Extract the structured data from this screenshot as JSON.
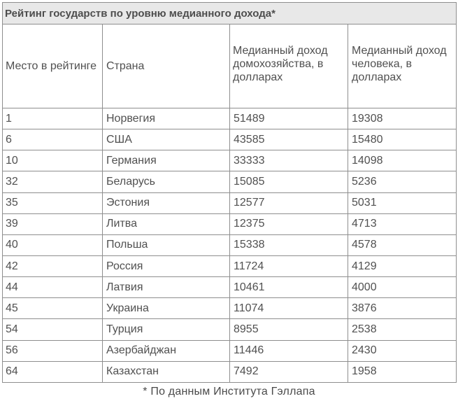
{
  "title": "Рейтинг государств по уровню медианного дохода*",
  "headers": {
    "rank": "Место в рейтинге",
    "country": "Страна",
    "household": "Медианный доход домохозяйства, в долларах",
    "person": "Медианный доход человека, в долларах"
  },
  "rows": [
    {
      "rank": "1",
      "country": "Норвегия",
      "household": "51489",
      "person": "19308"
    },
    {
      "rank": "6",
      "country": "США",
      "household": "43585",
      "person": "15480"
    },
    {
      "rank": "10",
      "country": "Германия",
      "household": "33333",
      "person": "14098"
    },
    {
      "rank": "32",
      "country": "Беларусь",
      "household": "15085",
      "person": "5236"
    },
    {
      "rank": "35",
      "country": "Эстония",
      "household": "12577",
      "person": "5031"
    },
    {
      "rank": "39",
      "country": "Литва",
      "household": "12375",
      "person": "4713"
    },
    {
      "rank": "40",
      "country": "Польша",
      "household": "15338",
      "person": "4578"
    },
    {
      "rank": "42",
      "country": "Россия",
      "household": "11724",
      "person": "4129"
    },
    {
      "rank": "44",
      "country": "Латвия",
      "household": "10461",
      "person": "4000"
    },
    {
      "rank": "45",
      "country": "Украина",
      "household": "11074",
      "person": "3876"
    },
    {
      "rank": "54",
      "country": "Турция",
      "household": "8955",
      "person": "2538"
    },
    {
      "rank": "56",
      "country": "Азербайджан",
      "household": "11446",
      "person": "2430"
    },
    {
      "rank": "64",
      "country": "Казахстан",
      "household": "7492",
      "person": "1958"
    }
  ],
  "footnote": "* По данным Института Гэллапа"
}
